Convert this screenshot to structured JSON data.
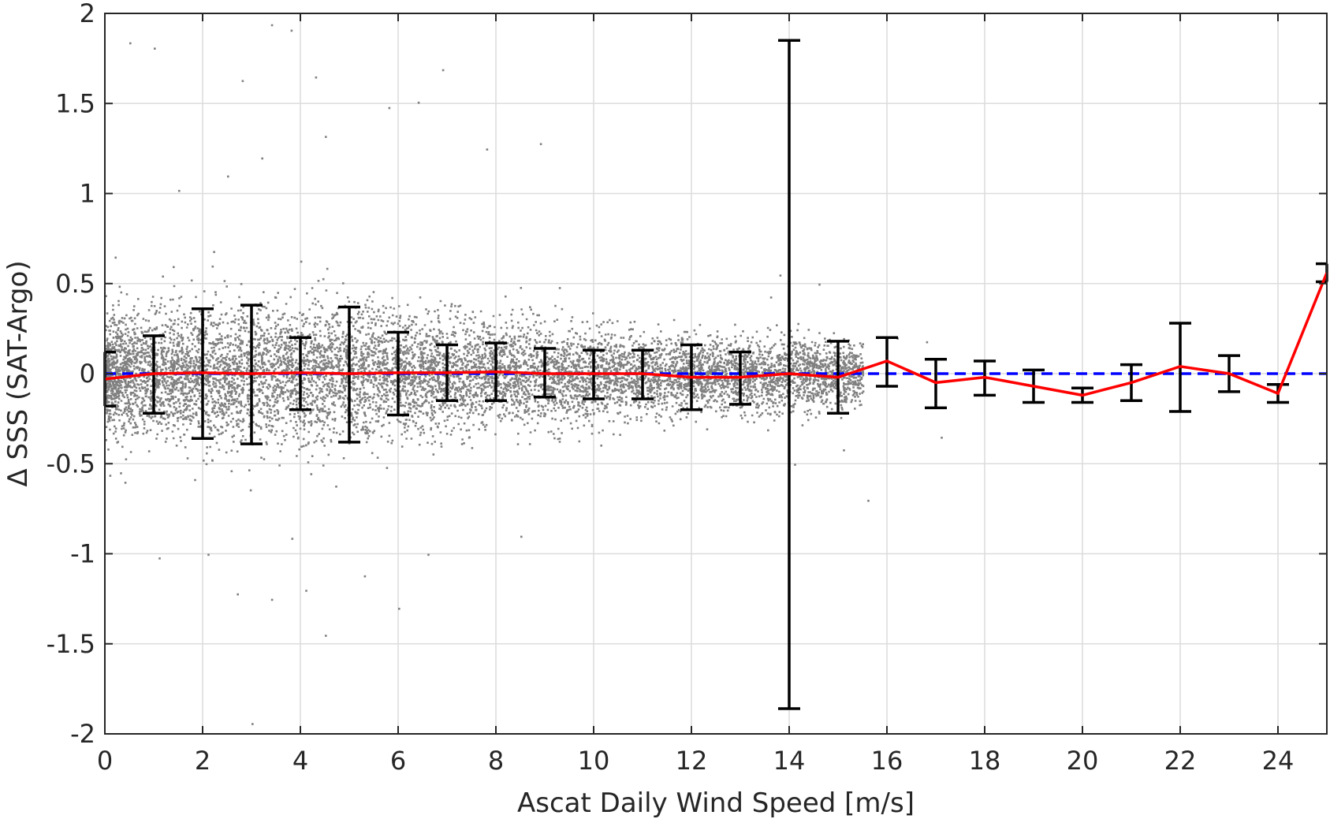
{
  "chart_data": {
    "type": "scatter",
    "xlabel": "Ascat Daily Wind Speed [m/s]",
    "ylabel": "Δ SSS (SAT-Argo)",
    "xlim": [
      0,
      25
    ],
    "ylim": [
      -2,
      2
    ],
    "xticks": [
      0,
      2,
      4,
      6,
      8,
      10,
      12,
      14,
      16,
      18,
      20,
      22,
      24
    ],
    "yticks": [
      2,
      1.5,
      1,
      0.5,
      0,
      -0.5,
      -1,
      -1.5,
      -2
    ],
    "grid": true,
    "reference_line": {
      "y": 0,
      "style": "dashed",
      "color": "#0000ff"
    },
    "scatter_color": "#808080",
    "errorbar_color": "#000000",
    "mean_line_color": "#ff0000",
    "series": [
      {
        "type": "line",
        "x": [
          0,
          1,
          2,
          3,
          4,
          5,
          6,
          7,
          8,
          9,
          10,
          11,
          12,
          13,
          14,
          15,
          16,
          17,
          18,
          19,
          20,
          21,
          22,
          23,
          24,
          25
        ],
        "values": [
          -0.03,
          0.0,
          0.005,
          0.0,
          0.005,
          0.0,
          0.005,
          0.005,
          0.01,
          0.0,
          0.0,
          0.0,
          -0.02,
          -0.02,
          0.0,
          -0.02,
          0.07,
          -0.05,
          -0.02,
          -0.07,
          -0.12,
          -0.05,
          0.04,
          0.0,
          -0.11,
          0.56
        ]
      },
      {
        "type": "errorbar",
        "x": [
          0,
          1,
          2,
          3,
          4,
          5,
          6,
          7,
          8,
          9,
          10,
          11,
          12,
          13,
          14,
          15,
          16,
          17,
          18,
          19,
          20,
          21,
          22,
          23,
          24,
          25
        ],
        "lower": [
          -0.18,
          -0.22,
          -0.36,
          -0.39,
          -0.2,
          -0.38,
          -0.23,
          -0.15,
          -0.15,
          -0.13,
          -0.14,
          -0.14,
          -0.2,
          -0.17,
          -1.86,
          -0.22,
          -0.07,
          -0.19,
          -0.12,
          -0.16,
          -0.16,
          -0.15,
          -0.21,
          -0.1,
          -0.16,
          0.51
        ],
        "upper": [
          0.12,
          0.21,
          0.36,
          0.38,
          0.2,
          0.37,
          0.23,
          0.16,
          0.17,
          0.14,
          0.13,
          0.13,
          0.16,
          0.12,
          1.85,
          0.18,
          0.2,
          0.08,
          0.07,
          0.02,
          -0.08,
          0.05,
          0.28,
          0.1,
          -0.06,
          0.61
        ]
      }
    ],
    "scatter_cloud": {
      "x_range": [
        0,
        15.5
      ],
      "points": 9000,
      "center_y": 0.0,
      "spread_by_x": [
        [
          0,
          0.16
        ],
        [
          2,
          0.19
        ],
        [
          4,
          0.19
        ],
        [
          6,
          0.17
        ],
        [
          8,
          0.14
        ],
        [
          10,
          0.12
        ],
        [
          12,
          0.1
        ],
        [
          14,
          0.1
        ],
        [
          15.5,
          0.08
        ]
      ]
    },
    "outlier_points": [
      [
        0.5,
        1.84
      ],
      [
        1,
        1.81
      ],
      [
        3.8,
        1.91
      ],
      [
        3.4,
        1.94
      ],
      [
        4.3,
        1.65
      ],
      [
        2.8,
        1.63
      ],
      [
        4.5,
        1.32
      ],
      [
        3.2,
        1.2
      ],
      [
        6.9,
        1.69
      ],
      [
        6.4,
        1.51
      ],
      [
        5.8,
        1.48
      ],
      [
        7.8,
        1.25
      ],
      [
        8.9,
        1.28
      ],
      [
        1.5,
        1.02
      ],
      [
        2.5,
        1.1
      ],
      [
        1.1,
        -1.02
      ],
      [
        2.1,
        -1.0
      ],
      [
        3.4,
        -1.25
      ],
      [
        2.7,
        -1.22
      ],
      [
        4.5,
        -1.45
      ],
      [
        4.1,
        -1.2
      ],
      [
        6.0,
        -1.3
      ],
      [
        5.3,
        -1.12
      ],
      [
        6.6,
        -1.0
      ],
      [
        8.5,
        -0.9
      ],
      [
        3.0,
        -1.94
      ],
      [
        13.8,
        0.55
      ],
      [
        14.6,
        0.5
      ],
      [
        15.6,
        -0.7
      ],
      [
        14.1,
        -0.5
      ],
      [
        15.1,
        -0.42
      ],
      [
        16.2,
        0.2
      ],
      [
        17.1,
        -0.35
      ],
      [
        16.8,
        0.18
      ],
      [
        0.2,
        0.65
      ],
      [
        0.4,
        -0.6
      ]
    ]
  }
}
